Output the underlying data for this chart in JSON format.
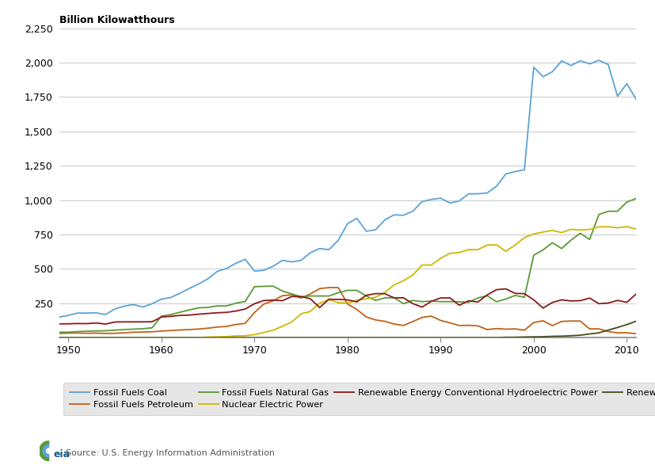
{
  "years": [
    1949,
    1950,
    1951,
    1952,
    1953,
    1954,
    1955,
    1956,
    1957,
    1958,
    1959,
    1960,
    1961,
    1962,
    1963,
    1964,
    1965,
    1966,
    1967,
    1968,
    1969,
    1970,
    1971,
    1972,
    1973,
    1974,
    1975,
    1976,
    1977,
    1978,
    1979,
    1980,
    1981,
    1982,
    1983,
    1984,
    1985,
    1986,
    1987,
    1988,
    1989,
    1990,
    1991,
    1992,
    1993,
    1994,
    1995,
    1996,
    1997,
    1998,
    1999,
    2000,
    2001,
    2002,
    2003,
    2004,
    2005,
    2006,
    2007,
    2008,
    2009,
    2010,
    2011
  ],
  "coal": [
    150,
    162,
    179,
    179,
    181,
    168,
    209,
    229,
    241,
    223,
    247,
    280,
    292,
    323,
    358,
    391,
    428,
    482,
    503,
    541,
    570,
    484,
    490,
    519,
    562,
    551,
    562,
    617,
    648,
    640,
    708,
    829,
    868,
    774,
    784,
    856,
    893,
    890,
    919,
    989,
    1005,
    1014,
    979,
    994,
    1045,
    1046,
    1052,
    1101,
    1190,
    1207,
    1221,
    1966,
    1897,
    1933,
    2012,
    1978,
    2013,
    1990,
    2016,
    1986,
    1755,
    1847,
    1733
  ],
  "petroleum": [
    31,
    33,
    34,
    32,
    33,
    31,
    32,
    35,
    40,
    41,
    43,
    48,
    52,
    56,
    59,
    63,
    69,
    77,
    82,
    96,
    104,
    183,
    244,
    268,
    305,
    311,
    288,
    318,
    357,
    364,
    364,
    245,
    205,
    151,
    129,
    119,
    99,
    89,
    117,
    147,
    157,
    125,
    108,
    88,
    90,
    86,
    59,
    66,
    62,
    64,
    54,
    110,
    123,
    88,
    118,
    121,
    121,
    64,
    64,
    45,
    35,
    36,
    29
  ],
  "natural_gas": [
    40,
    40,
    44,
    47,
    49,
    50,
    55,
    59,
    62,
    65,
    72,
    157,
    168,
    185,
    202,
    217,
    220,
    231,
    231,
    251,
    263,
    371,
    373,
    375,
    339,
    318,
    298,
    303,
    303,
    303,
    327,
    344,
    344,
    304,
    271,
    289,
    291,
    247,
    271,
    262,
    266,
    262,
    262,
    261,
    257,
    289,
    305,
    261,
    281,
    307,
    294,
    600,
    638,
    690,
    648,
    709,
    759,
    714,
    895,
    919,
    919,
    986,
    1012
  ],
  "nuclear": [
    0,
    0,
    0,
    0,
    0,
    0,
    0,
    0,
    0,
    0,
    0,
    0,
    0,
    0,
    0,
    0,
    4,
    6,
    8,
    13,
    14,
    22,
    38,
    54,
    83,
    114,
    173,
    191,
    251,
    276,
    255,
    251,
    273,
    282,
    294,
    328,
    384,
    414,
    455,
    527,
    529,
    577,
    613,
    619,
    640,
    640,
    673,
    675,
    628,
    673,
    728,
    754,
    768,
    780,
    764,
    788,
    782,
    787,
    806,
    806,
    799,
    807,
    790
  ],
  "hydro": [
    100,
    101,
    103,
    102,
    107,
    99,
    114,
    115,
    115,
    115,
    116,
    150,
    155,
    162,
    164,
    171,
    176,
    181,
    184,
    194,
    208,
    247,
    270,
    273,
    269,
    299,
    299,
    283,
    219,
    280,
    278,
    275,
    260,
    308,
    320,
    320,
    289,
    290,
    248,
    222,
    264,
    289,
    289,
    236,
    268,
    259,
    311,
    349,
    355,
    322,
    320,
    275,
    215,
    256,
    275,
    267,
    269,
    288,
    247,
    252,
    271,
    257,
    318
  ],
  "wind": [
    0,
    0,
    0,
    0,
    0,
    0,
    0,
    0,
    0,
    0,
    0,
    0,
    0,
    0,
    0,
    0,
    0,
    0,
    0,
    0,
    0,
    0,
    0,
    0,
    0,
    0,
    0,
    0,
    0,
    0,
    0,
    0,
    0,
    0,
    0,
    0,
    0,
    0,
    0,
    0,
    0,
    0,
    0,
    0,
    0,
    0,
    0,
    0,
    3,
    3,
    5,
    6,
    7,
    10,
    11,
    14,
    18,
    27,
    35,
    55,
    74,
    95,
    120
  ],
  "colors": {
    "coal": "#5BA3D9",
    "petroleum": "#C0621A",
    "natural_gas": "#5A9A35",
    "nuclear": "#CDB800",
    "hydro": "#8B1A1A",
    "wind": "#4A4A1A"
  },
  "labels": {
    "coal": "Fossil Fuels Coal",
    "petroleum": "Fossil Fuels Petroleum",
    "natural_gas": "Fossil Fuels Natural Gas",
    "nuclear": "Nuclear Electric Power",
    "hydro": "Renewable Energy Conventional Hydroelectric Power",
    "wind": "Renewable Energy Wind"
  },
  "ylabel": "Billion Kilowatthours",
  "ylim": [
    0,
    2250
  ],
  "yticks": [
    0,
    250,
    500,
    750,
    1000,
    1250,
    1500,
    1750,
    2000,
    2250
  ],
  "xlim": [
    1949,
    2011
  ],
  "xticks": [
    1950,
    1960,
    1970,
    1980,
    1990,
    2000,
    2010
  ],
  "source": "Source: U.S. Energy Information Administration",
  "bg_color": "#FFFFFF",
  "legend_bg": "#E0E0E0",
  "grid_color": "#C8C8C8"
}
